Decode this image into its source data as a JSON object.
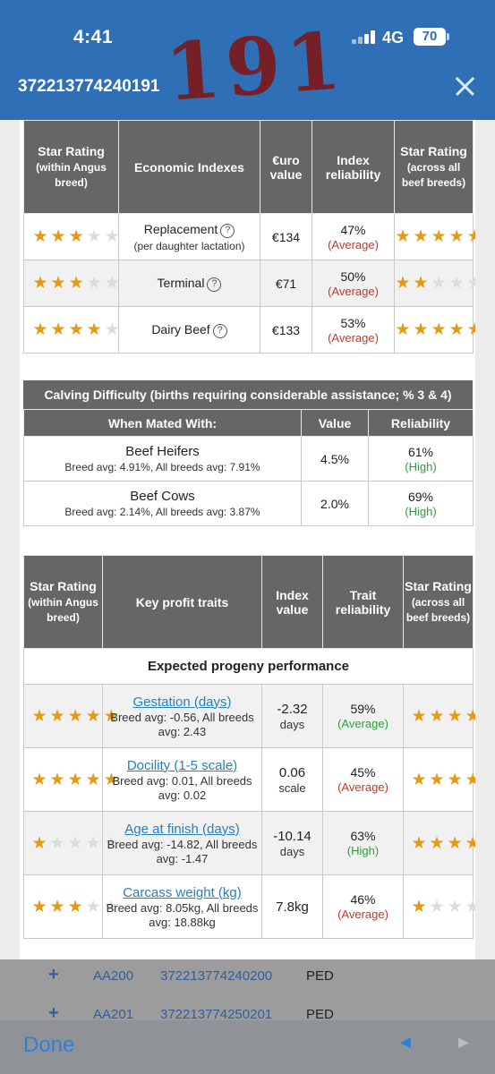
{
  "status": {
    "time": "4:41",
    "network": "4G",
    "battery": "70"
  },
  "handwriting": "191",
  "header": {
    "title": "372213774240191"
  },
  "econ": {
    "headers": [
      "Star Rating",
      "(within Angus breed)",
      "Economic Indexes",
      "€uro value",
      "Index reliability",
      "Star Rating",
      "(across all beef breeds)"
    ],
    "rows": [
      {
        "name": "Replacement",
        "sub": "(per daughter lactation)",
        "value": "€134",
        "reliability": "47%",
        "rel_label": "(Average)",
        "stars_within": 3,
        "stars_across": 5
      },
      {
        "name": "Terminal",
        "sub": "",
        "value": "€71",
        "reliability": "50%",
        "rel_label": "(Average)",
        "stars_within": 3,
        "stars_across": 2
      },
      {
        "name": "Dairy Beef",
        "sub": "",
        "value": "€133",
        "reliability": "53%",
        "rel_label": "(Average)",
        "stars_within": 4,
        "stars_across": 5
      }
    ]
  },
  "calving": {
    "title": "Calving Difficulty (births requiring considerable assistance; % 3 & 4)",
    "headers": [
      "When Mated With:",
      "Value",
      "Reliability"
    ],
    "rows": [
      {
        "name": "Beef Heifers",
        "sub": "Breed avg: 4.91%, All breeds avg: 7.91%",
        "value": "4.5%",
        "reliability": "61%",
        "rel_label": "(High)"
      },
      {
        "name": "Beef Cows",
        "sub": "Breed avg: 2.14%, All breeds avg: 3.87%",
        "value": "2.0%",
        "reliability": "69%",
        "rel_label": "(High)"
      }
    ]
  },
  "profit": {
    "headers": [
      "Star Rating",
      "(within Angus breed)",
      "Key profit traits",
      "Index value",
      "Trait reliability",
      "Star Rating",
      "(across all beef breeds)"
    ],
    "subheader": "Expected progeny performance",
    "rows": [
      {
        "name": "Gestation (days)",
        "sub": "Breed avg: -0.56, All breeds avg: 2.43",
        "value": "-2.32",
        "unit": "days",
        "reliability": "59%",
        "rel_label": "(Average)",
        "rel_color": "green",
        "stars_within": 5,
        "stars_across": 5
      },
      {
        "name": "Docility (1-5 scale)",
        "sub": "Breed avg: 0.01, All breeds avg: 0.02",
        "value": "0.06",
        "unit": "scale",
        "reliability": "45%",
        "rel_label": "(Average)",
        "rel_color": "red",
        "stars_within": 5,
        "stars_across": 4
      },
      {
        "name": "Age at finish (days)",
        "sub": "Breed avg: -14.82, All breeds avg: -1.47",
        "value": "-10.14",
        "unit": "days",
        "reliability": "63%",
        "rel_label": "(High)",
        "rel_color": "green",
        "stars_within": 1,
        "stars_across": 5
      },
      {
        "name": "Carcass weight (kg)",
        "sub": "Breed avg: 8.05kg, All breeds avg: 18.88kg",
        "value": "7.8kg",
        "unit": "",
        "reliability": "46%",
        "rel_label": "(Average)",
        "rel_color": "red",
        "stars_within": 3,
        "stars_across": 1
      }
    ]
  },
  "list": [
    {
      "code": "AA200",
      "number": "372213774240200",
      "type": "PED"
    },
    {
      "code": "AA201",
      "number": "372213774250201",
      "type": "PED"
    }
  ],
  "toolbar": {
    "done": "Done",
    "prev": "◄",
    "next": "►"
  },
  "colors": {
    "header": "#2f6fb5",
    "star": "#e49a12",
    "table_head": "#666666",
    "link": "#2a7fb8"
  }
}
